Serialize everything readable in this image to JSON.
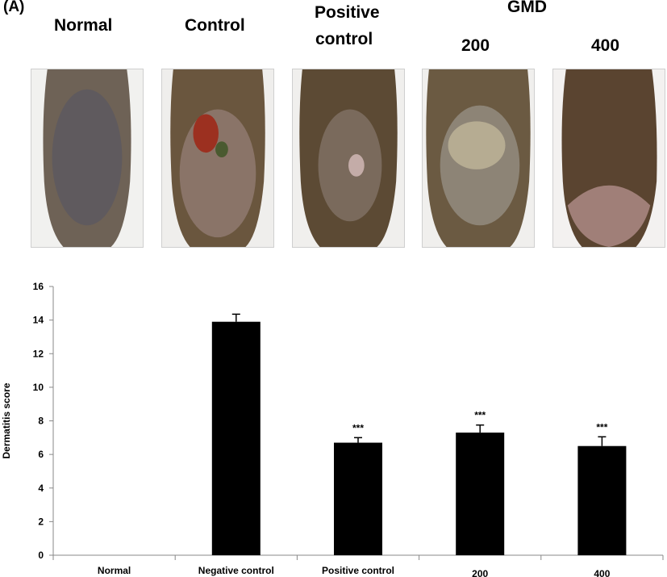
{
  "panel_label": "(A)",
  "photo_headers": {
    "normal": "Normal",
    "control": "Control",
    "positive_line1": "Positive",
    "positive_line2": "control",
    "gmd": "GMD",
    "dose_200": "200",
    "dose_400": "400"
  },
  "photos": [
    {
      "group": "Normal",
      "skin": "#5f5a5e",
      "fur": "#6e6256"
    },
    {
      "group": "Control",
      "skin": "#8a7468",
      "fur": "#6a563e",
      "lesion": "#9c3020"
    },
    {
      "group": "Positive control",
      "skin": "#7a6a5c",
      "fur": "#5c4a34"
    },
    {
      "group": "GMD 200",
      "skin": "#8d8476",
      "fur": "#6b5a42"
    },
    {
      "group": "GMD 400",
      "skin": "#a07f78",
      "fur": "#5a4430"
    }
  ],
  "chart_data": {
    "type": "bar",
    "categories": [
      "Normal",
      "Negative control",
      "Positive control",
      "200",
      "400"
    ],
    "values": [
      0,
      13.9,
      6.7,
      7.3,
      6.5
    ],
    "errors": [
      0,
      0.45,
      0.3,
      0.45,
      0.55
    ],
    "significance": [
      "",
      "",
      "***",
      "***",
      "***"
    ],
    "ylabel": "Dermatitis score",
    "xlabel": "",
    "ylim": [
      0,
      16
    ],
    "yticks": [
      0,
      2,
      4,
      6,
      8,
      10,
      12,
      14,
      16
    ],
    "bar_color": "#000000",
    "grid": false
  }
}
